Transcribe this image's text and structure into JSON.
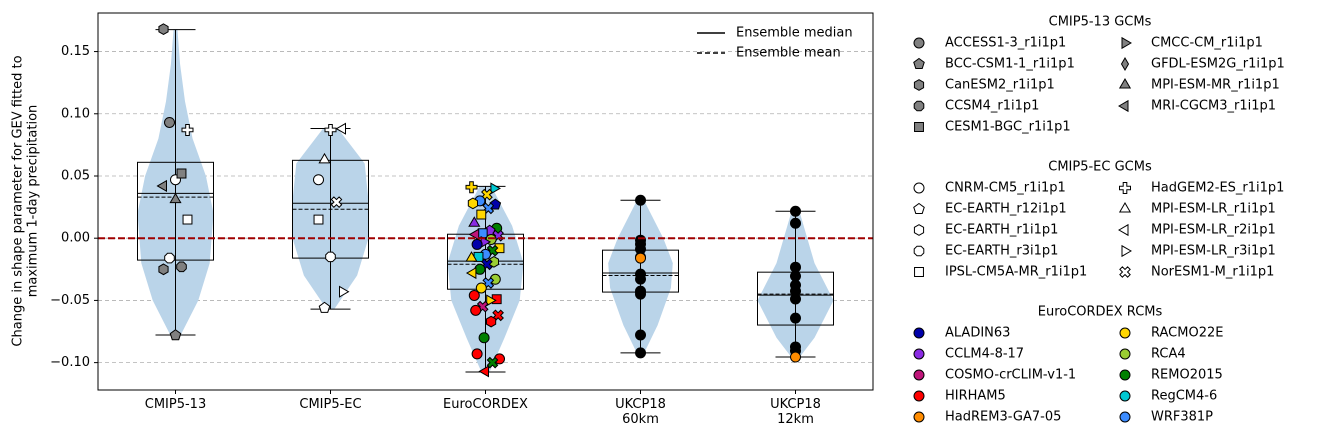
{
  "chart_data": {
    "type": "violin-box",
    "ylabel": [
      "Change in shape parameter for GEV fitted to",
      "maximum 1-day precipitation"
    ],
    "categories": [
      "CMIP5-13",
      "CMIP5-EC",
      "EuroCORDEX",
      "UKCP18\n60km",
      "UKCP18\n12km"
    ],
    "ylim": [
      -0.122,
      0.181
    ],
    "yticks": [
      {
        "value": -0.1,
        "label": "−0.10"
      },
      {
        "value": -0.05,
        "label": "−0.05"
      },
      {
        "value": 0,
        "label": "0.00"
      },
      {
        "value": 0.05,
        "label": "0.05"
      },
      {
        "value": 0.1,
        "label": "0.10"
      },
      {
        "value": 0.15,
        "label": "0.15"
      }
    ],
    "grid": true,
    "reference_line": {
      "value": 0,
      "color": "#a00000"
    },
    "violin_color": "#bad4e9",
    "line_legend": {
      "corner": "upper right",
      "median": "Ensemble median",
      "mean": "Ensemble mean"
    },
    "groups": [
      {
        "whisker_low": -0.0778,
        "q1": -0.0176,
        "median": 0.036,
        "mean": 0.033,
        "q3": 0.061,
        "whisker_high": 0.1676,
        "violin": {
          "y": [
            -0.08,
            -0.05,
            -0.02,
            0.02,
            0.05,
            0.08,
            0.11,
            0.14,
            0.168
          ],
          "width": [
            0.1,
            0.6,
            0.9,
            1.0,
            0.8,
            0.45,
            0.25,
            0.12,
            0.05
          ]
        },
        "points": [
          {
            "marker": "hexagon",
            "color": "#808080",
            "value": 0.168
          },
          {
            "marker": "circle",
            "color": "#ffffff",
            "value": 0.047
          },
          {
            "marker": "plus",
            "color": "#ffffff",
            "value": 0.087
          },
          {
            "marker": "circle",
            "color": "#808080",
            "value": 0.093
          },
          {
            "marker": "square",
            "color": "#808080",
            "value": 0.052
          },
          {
            "marker": "triangle-left",
            "color": "#808080",
            "value": 0.042
          },
          {
            "marker": "triangle-up",
            "color": "#808080",
            "value": 0.031
          },
          {
            "marker": "square",
            "color": "#ffffff",
            "value": 0.015
          },
          {
            "marker": "octagon",
            "color": "#ffffff",
            "value": -0.016
          },
          {
            "marker": "octagon",
            "color": "#808080",
            "value": -0.023
          },
          {
            "marker": "hexagon",
            "color": "#808080",
            "value": -0.025
          },
          {
            "marker": "pentagon",
            "color": "#808080",
            "value": -0.078
          }
        ]
      },
      {
        "whisker_low": -0.057,
        "q1": -0.016,
        "median": 0.0281,
        "mean": 0.0233,
        "q3": 0.0626,
        "whisker_high": 0.0882,
        "violin": {
          "y": [
            -0.057,
            -0.03,
            0,
            0.03,
            0.06,
            0.088
          ],
          "width": [
            0.1,
            0.7,
            1.0,
            1.0,
            0.9,
            0.2
          ]
        },
        "points": [
          {
            "marker": "circle",
            "color": "#ffffff",
            "value": 0.047
          },
          {
            "marker": "plus",
            "color": "#ffffff",
            "value": 0.087
          },
          {
            "marker": "triangle-left",
            "color": "#ffffff",
            "value": 0.088
          },
          {
            "marker": "triangle-up",
            "color": "#ffffff",
            "value": 0.063
          },
          {
            "marker": "x",
            "color": "#ffffff",
            "value": 0.029
          },
          {
            "marker": "square",
            "color": "#ffffff",
            "value": 0.015
          },
          {
            "marker": "octagon",
            "color": "#ffffff",
            "value": -0.015
          },
          {
            "marker": "triangle-right",
            "color": "#ffffff",
            "value": -0.043
          },
          {
            "marker": "pentagon",
            "color": "#ffffff",
            "value": -0.056
          }
        ]
      },
      {
        "whisker_low": -0.1075,
        "q1": -0.041,
        "median": -0.0184,
        "mean": -0.0209,
        "q3": 0.0032,
        "whisker_high": 0.0417,
        "violin": {
          "y": [
            -0.108,
            -0.08,
            -0.05,
            -0.02,
            0.01,
            0.042
          ],
          "width": [
            0.1,
            0.5,
            0.9,
            1.0,
            0.7,
            0.15
          ]
        },
        "points": [
          {
            "marker": "plus",
            "color": "#ffd700",
            "value": 0.041
          },
          {
            "marker": "triangle-right",
            "color": "#00c8d2",
            "value": 0.04
          },
          {
            "marker": "x",
            "color": "#ffd700",
            "value": 0.035
          },
          {
            "marker": "circle",
            "color": "#3c8cff",
            "value": 0.03
          },
          {
            "marker": "hexagon",
            "color": "#ffd700",
            "value": 0.028
          },
          {
            "marker": "pentagon",
            "color": "#0000aa",
            "value": 0.027
          },
          {
            "marker": "x",
            "color": "#3c8cff",
            "value": 0.024
          },
          {
            "marker": "square",
            "color": "#ffd700",
            "value": 0.019
          },
          {
            "marker": "triangle-up",
            "color": "#8a2be2",
            "value": 0.012
          },
          {
            "marker": "circle",
            "color": "#008000",
            "value": 0.008
          },
          {
            "marker": "pentagon",
            "color": "#8a2be2",
            "value": 0.006
          },
          {
            "marker": "square",
            "color": "#3c8cff",
            "value": 0.004
          },
          {
            "marker": "triangle-left",
            "color": "#c0157a",
            "value": 0.003
          },
          {
            "marker": "x",
            "color": "#8a2be2",
            "value": 0.002
          },
          {
            "marker": "circle",
            "color": "#9acd32",
            "value": -0.001
          },
          {
            "marker": "triangle-right",
            "color": "#8a2be2",
            "value": -0.003
          },
          {
            "marker": "circle",
            "color": "#0000aa",
            "value": -0.005
          },
          {
            "marker": "square",
            "color": "#ffd700",
            "value": -0.008
          },
          {
            "marker": "x",
            "color": "#008000",
            "value": -0.01
          },
          {
            "marker": "circle",
            "color": "#3c8cff",
            "value": -0.013
          },
          {
            "marker": "square",
            "color": "#00c8d2",
            "value": -0.015
          },
          {
            "marker": "triangle-up",
            "color": "#ffd700",
            "value": -0.016
          },
          {
            "marker": "hexagon",
            "color": "#9acd32",
            "value": -0.019
          },
          {
            "marker": "x",
            "color": "#0000aa",
            "value": -0.021
          },
          {
            "marker": "circle",
            "color": "#008000",
            "value": -0.025
          },
          {
            "marker": "triangle-left",
            "color": "#ffd700",
            "value": -0.028
          },
          {
            "marker": "circle",
            "color": "#9acd32",
            "value": -0.033
          },
          {
            "marker": "x",
            "color": "#3c8cff",
            "value": -0.036
          },
          {
            "marker": "circle",
            "color": "#ffd700",
            "value": -0.04
          },
          {
            "marker": "circle",
            "color": "#ff0000",
            "value": -0.046
          },
          {
            "marker": "square",
            "color": "#ff0000",
            "value": -0.049
          },
          {
            "marker": "triangle-right",
            "color": "#ffd700",
            "value": -0.05
          },
          {
            "marker": "x",
            "color": "#c0157a",
            "value": -0.055
          },
          {
            "marker": "circle",
            "color": "#ff0000",
            "value": -0.058
          },
          {
            "marker": "x",
            "color": "#ff0000",
            "value": -0.062
          },
          {
            "marker": "hexagon",
            "color": "#ff0000",
            "value": -0.067
          },
          {
            "marker": "circle",
            "color": "#008000",
            "value": -0.08
          },
          {
            "marker": "circle",
            "color": "#ff0000",
            "value": -0.093
          },
          {
            "marker": "circle",
            "color": "#ff0000",
            "value": -0.097
          },
          {
            "marker": "x",
            "color": "#008000",
            "value": -0.1
          },
          {
            "marker": "triangle-left",
            "color": "#ff0000",
            "value": -0.107
          }
        ]
      },
      {
        "whisker_low": -0.0922,
        "q1": -0.0433,
        "median": -0.028,
        "mean": -0.03,
        "q3": -0.0096,
        "whisker_high": 0.0305,
        "violin": {
          "y": [
            -0.092,
            -0.07,
            -0.04,
            -0.02,
            0,
            0.03
          ],
          "width": [
            0.1,
            0.45,
            0.8,
            0.85,
            0.6,
            0.1
          ]
        },
        "points": [
          {
            "marker": "circle",
            "color": "#000000",
            "value": 0.0305
          },
          {
            "marker": "circle",
            "color": "#000000",
            "value": -0.0016
          },
          {
            "marker": "circle",
            "color": "#000000",
            "value": -0.0048
          },
          {
            "marker": "circle",
            "color": "#000000",
            "value": -0.0088
          },
          {
            "marker": "circle",
            "color": "#000000",
            "value": -0.0152
          },
          {
            "marker": "circle",
            "color": "#ff8c00",
            "value": -0.016
          },
          {
            "marker": "circle",
            "color": "#000000",
            "value": -0.0289
          },
          {
            "marker": "circle",
            "color": "#000000",
            "value": -0.0329
          },
          {
            "marker": "circle",
            "color": "#000000",
            "value": -0.0425
          },
          {
            "marker": "circle",
            "color": "#000000",
            "value": -0.0449
          },
          {
            "marker": "circle",
            "color": "#000000",
            "value": -0.0778
          },
          {
            "marker": "circle",
            "color": "#000000",
            "value": -0.0922
          }
        ]
      },
      {
        "whisker_low": -0.0955,
        "q1": -0.0698,
        "median": -0.0457,
        "mean": -0.0449,
        "q3": -0.0273,
        "whisker_high": 0.0217,
        "violin": {
          "y": [
            -0.096,
            -0.08,
            -0.05,
            -0.02,
            0.022
          ],
          "width": [
            0.1,
            0.5,
            1.0,
            0.5,
            0.1
          ]
        },
        "points": [
          {
            "marker": "circle",
            "color": "#000000",
            "value": 0.0217
          },
          {
            "marker": "circle",
            "color": "#000000",
            "value": 0.012
          },
          {
            "marker": "circle",
            "color": "#000000",
            "value": -0.0233
          },
          {
            "marker": "circle",
            "color": "#000000",
            "value": -0.0305
          },
          {
            "marker": "circle",
            "color": "#000000",
            "value": -0.0377
          },
          {
            "marker": "circle",
            "color": "#000000",
            "value": -0.0425
          },
          {
            "marker": "circle",
            "color": "#000000",
            "value": -0.0489
          },
          {
            "marker": "circle",
            "color": "#000000",
            "value": -0.0642
          },
          {
            "marker": "circle",
            "color": "#000000",
            "value": -0.0874
          },
          {
            "marker": "circle",
            "color": "#000000",
            "value": -0.0906
          },
          {
            "marker": "circle",
            "color": "#ff8c00",
            "value": -0.0955
          }
        ]
      }
    ],
    "model_legends": [
      {
        "title": "CMIP5-13 GCMs",
        "entries": [
          {
            "name": "ACCESS1-3_r1i1p1",
            "marker": "circle",
            "color": "#808080"
          },
          {
            "name": "BCC-CSM1-1_r1i1p1",
            "marker": "pentagon",
            "color": "#808080"
          },
          {
            "name": "CanESM2_r1i1p1",
            "marker": "hexagon",
            "color": "#808080"
          },
          {
            "name": "CCSM4_r1i1p1",
            "marker": "octagon",
            "color": "#808080"
          },
          {
            "name": "CESM1-BGC_r1i1p1",
            "marker": "square",
            "color": "#808080"
          },
          {
            "name": "CMCC-CM_r1i1p1",
            "marker": "triangle-right",
            "color": "#808080"
          },
          {
            "name": "GFDL-ESM2G_r1i1p1",
            "marker": "diamond",
            "color": "#808080"
          },
          {
            "name": "MPI-ESM-MR_r1i1p1",
            "marker": "triangle-up",
            "color": "#808080"
          },
          {
            "name": "MRI-CGCM3_r1i1p1",
            "marker": "triangle-left",
            "color": "#808080"
          }
        ]
      },
      {
        "title": "CMIP5-EC GCMs",
        "entries": [
          {
            "name": "CNRM-CM5_r1i1p1",
            "marker": "circle",
            "color": "#ffffff"
          },
          {
            "name": "EC-EARTH_r12i1p1",
            "marker": "pentagon",
            "color": "#ffffff"
          },
          {
            "name": "EC-EARTH_r1i1p1",
            "marker": "hexagon",
            "color": "#ffffff"
          },
          {
            "name": "EC-EARTH_r3i1p1",
            "marker": "octagon",
            "color": "#ffffff"
          },
          {
            "name": "IPSL-CM5A-MR_r1i1p1",
            "marker": "square",
            "color": "#ffffff"
          },
          {
            "name": "HadGEM2-ES_r1i1p1",
            "marker": "plus",
            "color": "#ffffff"
          },
          {
            "name": "MPI-ESM-LR_r1i1p1",
            "marker": "triangle-up",
            "color": "#ffffff"
          },
          {
            "name": "MPI-ESM-LR_r2i1p1",
            "marker": "triangle-left",
            "color": "#ffffff"
          },
          {
            "name": "MPI-ESM-LR_r3i1p1",
            "marker": "triangle-right",
            "color": "#ffffff"
          },
          {
            "name": "NorESM1-M_r1i1p1",
            "marker": "x",
            "color": "#ffffff"
          }
        ]
      },
      {
        "title": "EuroCORDEX RCMs",
        "entries": [
          {
            "name": "ALADIN63",
            "marker": "circle",
            "color": "#0000aa"
          },
          {
            "name": "CCLM4-8-17",
            "marker": "circle",
            "color": "#8a2be2"
          },
          {
            "name": "COSMO-crCLIM-v1-1",
            "marker": "circle",
            "color": "#c0157a"
          },
          {
            "name": "HIRHAM5",
            "marker": "circle",
            "color": "#ff0000"
          },
          {
            "name": "HadREM3-GA7-05",
            "marker": "circle",
            "color": "#ff8c00"
          },
          {
            "name": "RACMO22E",
            "marker": "circle",
            "color": "#ffd700"
          },
          {
            "name": "RCA4",
            "marker": "circle",
            "color": "#9acd32"
          },
          {
            "name": "REMO2015",
            "marker": "circle",
            "color": "#008000"
          },
          {
            "name": "RegCM4-6",
            "marker": "circle",
            "color": "#00c8d2"
          },
          {
            "name": "WRF381P",
            "marker": "circle",
            "color": "#3c8cff"
          }
        ]
      }
    ]
  }
}
